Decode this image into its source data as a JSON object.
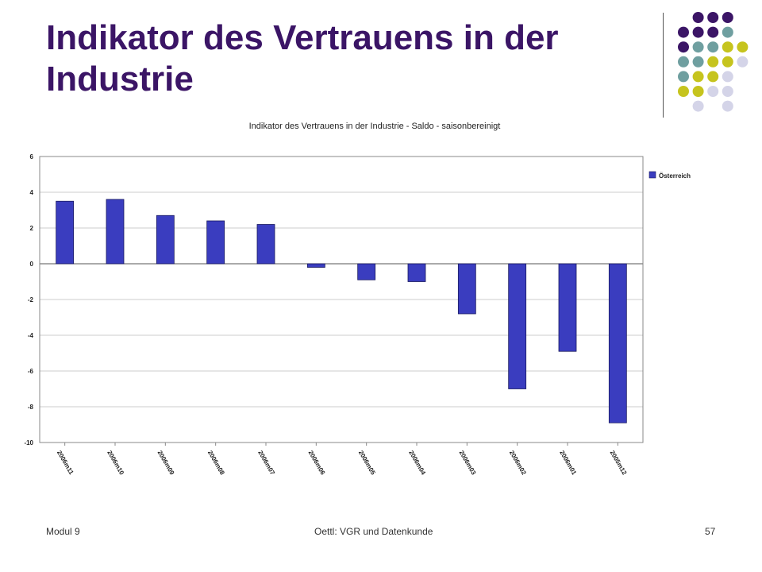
{
  "slide": {
    "title": "Indikator des Vertrauens in der Industrie",
    "footer_left": "Modul 9",
    "footer_center": "Oettl: VGR und Datenkunde",
    "page_number": "57"
  },
  "decoration": {
    "dot_colors": {
      "purple": "#3b1566",
      "teal": "#6f9fa0",
      "yellow": "#c6c41e",
      "lavender": "#d4d4e8"
    }
  },
  "chart_data": {
    "type": "bar",
    "title": "Indikator des Vertrauens in der Industrie - Saldo - saisonbereinigt",
    "categories": [
      "2006m11",
      "2006m10",
      "2006m09",
      "2006m08",
      "2006m07",
      "2006m06",
      "2006m05",
      "2006m04",
      "2006m03",
      "2006m02",
      "2006m01",
      "2005m12"
    ],
    "series": [
      {
        "name": "Österreich",
        "color": "#3a3dbf",
        "values": [
          3.5,
          3.6,
          2.7,
          2.4,
          2.2,
          -0.2,
          -0.9,
          -1.0,
          -2.8,
          -7.0,
          -4.9,
          -8.9
        ]
      }
    ],
    "ylim": [
      -10,
      6
    ],
    "yticks": [
      6,
      4,
      2,
      0,
      -2,
      -4,
      -6,
      -8,
      -10
    ],
    "xlabel": "",
    "ylabel": "",
    "grid": true,
    "legend_position": "right"
  }
}
